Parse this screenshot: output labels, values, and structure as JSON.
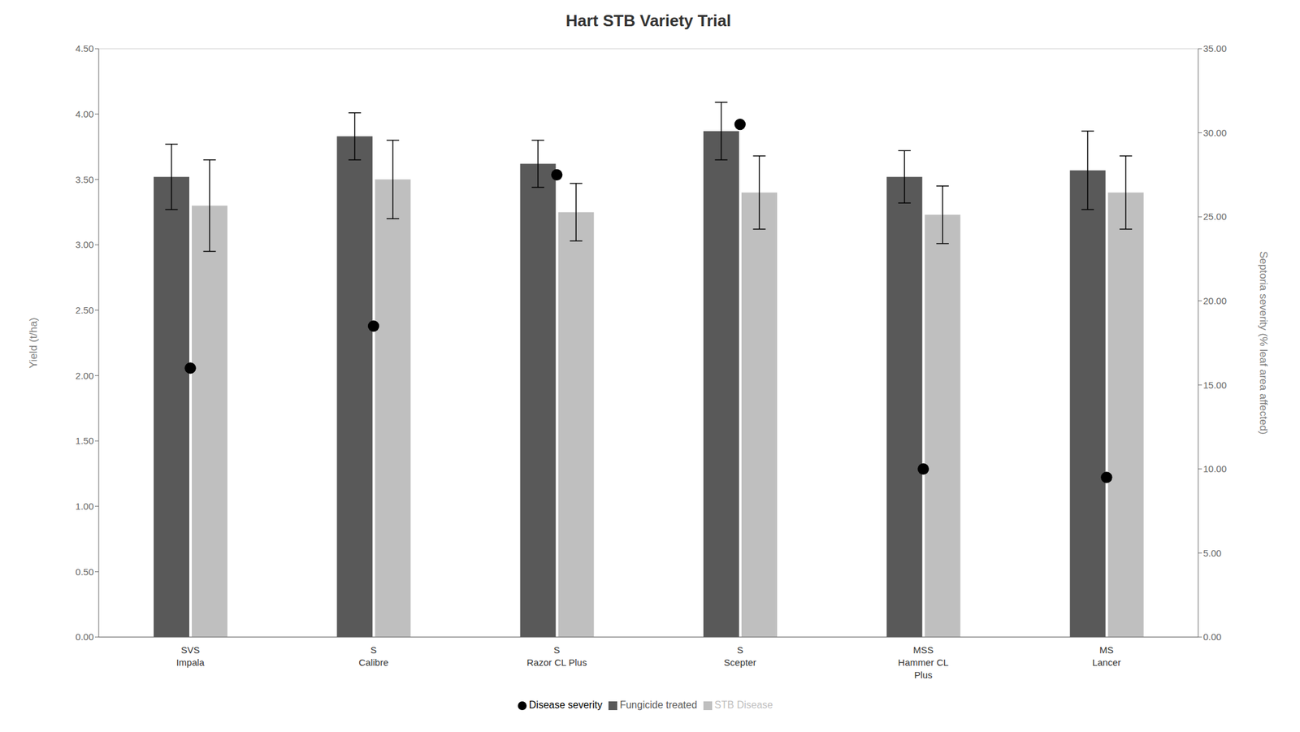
{
  "chart_data": {
    "type": "bar",
    "title": "Hart STB Variety Trial",
    "categories": [
      "SVS\nImpala",
      "S\nCalibre",
      "S\nRazor CL Plus",
      "S\nScepter",
      "MSS\nHammer CL\nPlus",
      "MS\nLancer"
    ],
    "series": [
      {
        "name": "Fungicide treated",
        "type": "bar",
        "color": "#595959",
        "values": [
          3.52,
          3.83,
          3.62,
          3.87,
          3.52,
          3.57
        ],
        "errors": [
          0.25,
          0.18,
          0.18,
          0.22,
          0.2,
          0.3
        ]
      },
      {
        "name": "STB Disease",
        "type": "bar",
        "color": "#bfbfbf",
        "values": [
          3.3,
          3.5,
          3.25,
          3.4,
          3.23,
          3.4
        ],
        "errors": [
          0.35,
          0.3,
          0.22,
          0.28,
          0.22,
          0.28
        ]
      },
      {
        "name": "Disease severity",
        "type": "scatter",
        "axis": "y2",
        "color": "#000000",
        "marker": "o",
        "values": [
          16.0,
          18.5,
          27.5,
          30.5,
          10.0,
          9.5
        ]
      }
    ],
    "ylabel": "Yield (t/ha)",
    "y2label": "Septoria severity (% leaf area affected)",
    "ylim": [
      0.0,
      4.5
    ],
    "yticks": [
      {
        "value": 0.0,
        "label": "0.00"
      },
      {
        "value": 0.5,
        "label": "0.50"
      },
      {
        "value": 1.0,
        "label": "1.00"
      },
      {
        "value": 1.5,
        "label": "1.50"
      },
      {
        "value": 2.0,
        "label": "2.00"
      },
      {
        "value": 2.5,
        "label": "2.50"
      },
      {
        "value": 3.0,
        "label": "3.00"
      },
      {
        "value": 3.5,
        "label": "3.50"
      },
      {
        "value": 4.0,
        "label": "4.00"
      },
      {
        "value": 4.5,
        "label": "4.50"
      }
    ],
    "y2lim": [
      0.0,
      35.0
    ],
    "y2ticks": [
      {
        "value": 0.0,
        "label": "0.00"
      },
      {
        "value": 5.0,
        "label": "5.00"
      },
      {
        "value": 10.0,
        "label": "10.00"
      },
      {
        "value": 15.0,
        "label": "15.00"
      },
      {
        "value": 20.0,
        "label": "20.00"
      },
      {
        "value": 25.0,
        "label": "25.00"
      },
      {
        "value": 30.0,
        "label": "30.00"
      },
      {
        "value": 35.0,
        "label": "35.00"
      }
    ],
    "grid": true,
    "legend": "bottom"
  }
}
